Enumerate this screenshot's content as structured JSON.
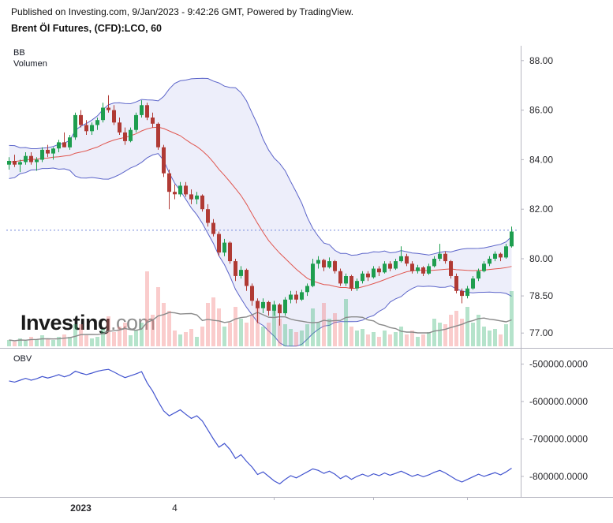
{
  "header": {
    "published_line": "Published on Investing.com, 9/Jan/2023 - 9:42:26 GMT, Powered by TradingView.",
    "instrument_title": "Brent Öl Futures, (CFD):LCO, 60"
  },
  "main_pane": {
    "indicator_labels": [
      "BB",
      "Volumen"
    ],
    "watermark": {
      "bold": "Investing",
      "light": ".com"
    }
  },
  "obv_pane": {
    "label": "OBV"
  },
  "colors": {
    "up": "#1e9e4f",
    "down": "#b03a34",
    "vol_up": "rgba(70,185,125,0.40)",
    "vol_down": "rgba(242,120,120,0.38)",
    "vol_ma": "#8a8a8a",
    "bb_fill": "rgba(104,114,216,0.12)",
    "bb_line": "#5b64c9",
    "bb_mid": "#e0564f",
    "dotted": "#7388d9",
    "obv": "#4254cf",
    "axis": "#b6b6c1",
    "text": "#27272b"
  },
  "x_axis": {
    "labels": [
      {
        "index": 13,
        "text": "2023",
        "bold": true
      },
      {
        "index": 30,
        "text": "4",
        "bold": false
      }
    ],
    "minor_tick_indices": [
      48,
      66,
      83
    ]
  },
  "chart_data": [
    {
      "type": "candlestick",
      "title": "Brent Öl Futures, (CFD):LCO, 60",
      "indicator": "BB",
      "timeframe_minutes": 60,
      "ylim": [
        76.4,
        88.6
      ],
      "dotted_line_level": 81.15,
      "y_ticks": [
        {
          "price": 88.0,
          "label": "88.00"
        },
        {
          "price": 86.0,
          "label": "86.00"
        },
        {
          "price": 84.0,
          "label": "84.00"
        },
        {
          "price": 82.0,
          "label": "82.00"
        },
        {
          "price": 80.0,
          "label": "80.00"
        },
        {
          "price": 78.5,
          "label": "78.50"
        },
        {
          "price": 77.0,
          "label": "77.00"
        }
      ],
      "bollinger": {
        "period": 20,
        "stddev": 2
      },
      "pre_closes": [
        83.2,
        83.5,
        83.1,
        83.6,
        83.4,
        83.9,
        83.6,
        84.1,
        83.8,
        84.3,
        83.9,
        84.4,
        84.0,
        84.5,
        84.1,
        83.8,
        84.2,
        83.9,
        84.1,
        83.95
      ],
      "candles": [
        [
          83.8,
          84.1,
          83.6,
          83.95
        ],
        [
          83.95,
          84.2,
          83.7,
          83.8
        ],
        [
          83.8,
          84.0,
          83.5,
          83.9
        ],
        [
          83.9,
          84.3,
          83.8,
          84.15
        ],
        [
          84.15,
          84.3,
          83.8,
          83.9
        ],
        [
          83.9,
          84.1,
          83.55,
          84.0
        ],
        [
          84.0,
          84.5,
          83.9,
          84.4
        ],
        [
          84.4,
          84.6,
          84.1,
          84.25
        ],
        [
          84.25,
          84.5,
          84.0,
          84.45
        ],
        [
          84.45,
          84.8,
          84.3,
          84.7
        ],
        [
          84.7,
          85.1,
          84.5,
          84.5
        ],
        [
          84.5,
          85.0,
          84.4,
          84.9
        ],
        [
          84.9,
          85.9,
          84.8,
          85.8
        ],
        [
          85.8,
          86.0,
          85.3,
          85.4
        ],
        [
          85.4,
          85.6,
          85.0,
          85.15
        ],
        [
          85.15,
          85.5,
          85.0,
          85.4
        ],
        [
          85.4,
          85.7,
          85.2,
          85.6
        ],
        [
          85.6,
          86.3,
          85.5,
          86.1
        ],
        [
          86.1,
          86.6,
          85.9,
          86.0
        ],
        [
          86.0,
          86.2,
          85.4,
          85.5
        ],
        [
          85.5,
          85.7,
          85.0,
          85.1
        ],
        [
          85.1,
          85.3,
          84.6,
          84.75
        ],
        [
          84.75,
          85.3,
          84.7,
          85.2
        ],
        [
          85.2,
          85.9,
          85.1,
          85.8
        ],
        [
          85.8,
          86.4,
          85.7,
          86.2
        ],
        [
          86.2,
          86.3,
          85.6,
          85.7
        ],
        [
          85.7,
          85.9,
          85.3,
          85.45
        ],
        [
          85.45,
          85.5,
          84.4,
          84.5
        ],
        [
          84.5,
          84.6,
          83.3,
          83.45
        ],
        [
          83.45,
          83.6,
          82.0,
          82.7
        ],
        [
          82.7,
          83.0,
          82.4,
          82.6
        ],
        [
          82.6,
          83.1,
          82.5,
          82.95
        ],
        [
          82.95,
          83.1,
          82.5,
          82.6
        ],
        [
          82.6,
          82.8,
          82.2,
          82.4
        ],
        [
          82.4,
          82.7,
          82.2,
          82.55
        ],
        [
          82.55,
          82.6,
          81.9,
          82.0
        ],
        [
          82.0,
          82.2,
          81.3,
          81.45
        ],
        [
          81.45,
          81.6,
          80.9,
          81.0
        ],
        [
          81.0,
          81.1,
          80.1,
          80.25
        ],
        [
          80.25,
          80.8,
          80.1,
          80.65
        ],
        [
          80.65,
          80.7,
          79.8,
          79.9
        ],
        [
          79.9,
          80.0,
          79.1,
          79.3
        ],
        [
          79.3,
          79.7,
          79.2,
          79.55
        ],
        [
          79.55,
          79.6,
          78.7,
          78.9
        ],
        [
          78.9,
          79.0,
          78.1,
          78.3
        ],
        [
          78.3,
          78.4,
          77.4,
          78.0
        ],
        [
          78.0,
          78.4,
          77.8,
          78.25
        ],
        [
          78.25,
          78.3,
          77.7,
          77.9
        ],
        [
          77.9,
          78.3,
          77.7,
          78.15
        ],
        [
          78.15,
          78.2,
          77.3,
          77.8
        ],
        [
          77.8,
          78.45,
          77.7,
          78.35
        ],
        [
          78.35,
          78.7,
          78.2,
          78.55
        ],
        [
          78.55,
          78.7,
          78.2,
          78.35
        ],
        [
          78.35,
          78.75,
          78.3,
          78.65
        ],
        [
          78.65,
          79.0,
          78.5,
          78.9
        ],
        [
          78.9,
          80.0,
          78.85,
          79.8
        ],
        [
          79.8,
          80.1,
          79.6,
          79.95
        ],
        [
          79.95,
          80.0,
          79.5,
          79.65
        ],
        [
          79.65,
          80.05,
          79.6,
          79.9
        ],
        [
          79.9,
          79.95,
          79.4,
          79.5
        ],
        [
          79.5,
          79.6,
          78.9,
          79.0
        ],
        [
          79.0,
          79.4,
          78.9,
          79.3
        ],
        [
          79.3,
          79.35,
          78.7,
          78.8
        ],
        [
          78.8,
          79.2,
          78.7,
          79.1
        ],
        [
          79.1,
          79.5,
          79.0,
          79.4
        ],
        [
          79.4,
          79.5,
          79.1,
          79.25
        ],
        [
          79.25,
          79.7,
          79.2,
          79.6
        ],
        [
          79.6,
          79.7,
          79.3,
          79.45
        ],
        [
          79.45,
          79.9,
          79.4,
          79.8
        ],
        [
          79.8,
          79.9,
          79.5,
          79.6
        ],
        [
          79.6,
          80.0,
          79.55,
          79.9
        ],
        [
          79.9,
          80.5,
          79.85,
          80.1
        ],
        [
          80.1,
          80.2,
          79.7,
          79.8
        ],
        [
          79.8,
          79.9,
          79.4,
          79.5
        ],
        [
          79.5,
          79.75,
          79.4,
          79.65
        ],
        [
          79.65,
          79.7,
          79.3,
          79.4
        ],
        [
          79.4,
          79.8,
          79.35,
          79.7
        ],
        [
          79.7,
          80.1,
          79.65,
          80.0
        ],
        [
          80.0,
          80.6,
          79.9,
          80.2
        ],
        [
          80.2,
          80.3,
          79.8,
          79.9
        ],
        [
          79.9,
          79.95,
          79.2,
          79.3
        ],
        [
          79.3,
          79.4,
          78.6,
          78.7
        ],
        [
          78.7,
          78.8,
          78.2,
          78.5
        ],
        [
          78.5,
          78.9,
          78.4,
          78.8
        ],
        [
          78.8,
          79.3,
          78.75,
          79.2
        ],
        [
          79.2,
          79.6,
          79.1,
          79.5
        ],
        [
          79.5,
          79.9,
          79.45,
          79.8
        ],
        [
          79.8,
          80.1,
          79.7,
          80.0
        ],
        [
          80.0,
          80.3,
          79.9,
          80.2
        ],
        [
          80.2,
          80.25,
          79.9,
          80.05
        ],
        [
          80.05,
          80.6,
          80.0,
          80.5
        ],
        [
          80.5,
          81.3,
          80.45,
          81.1
        ]
      ]
    },
    {
      "type": "bar",
      "name": "Volumen",
      "values": [
        8,
        6,
        10,
        7,
        12,
        9,
        14,
        10,
        8,
        12,
        15,
        12,
        28,
        28,
        14,
        10,
        12,
        22,
        38,
        18,
        25,
        30,
        14,
        20,
        30,
        95,
        40,
        75,
        55,
        45,
        20,
        15,
        18,
        22,
        12,
        25,
        55,
        62,
        48,
        25,
        30,
        50,
        35,
        30,
        40,
        55,
        25,
        30,
        45,
        35,
        28,
        22,
        18,
        20,
        28,
        48,
        30,
        55,
        35,
        42,
        30,
        60,
        25,
        20,
        22,
        15,
        18,
        12,
        20,
        15,
        18,
        25,
        15,
        20,
        12,
        15,
        18,
        35,
        30,
        28,
        40,
        45,
        35,
        50,
        30,
        40,
        25,
        20,
        22,
        15,
        28,
        70
      ]
    },
    {
      "type": "line",
      "name": "OBV",
      "ylim": [
        -855000,
        -465000
      ],
      "y_ticks": [
        {
          "value": -500000,
          "label": "-500000.0000"
        },
        {
          "value": -600000,
          "label": "-600000.0000"
        },
        {
          "value": -700000,
          "label": "-700000.0000"
        },
        {
          "value": -800000,
          "label": "-800000.0000"
        }
      ],
      "values": [
        -545000,
        -548000,
        -543000,
        -538000,
        -543000,
        -539000,
        -533000,
        -537000,
        -533000,
        -528000,
        -534000,
        -529000,
        -519000,
        -524000,
        -528000,
        -524000,
        -519000,
        -516000,
        -514000,
        -521000,
        -529000,
        -536000,
        -531000,
        -526000,
        -520000,
        -550000,
        -572000,
        -600000,
        -625000,
        -638000,
        -630000,
        -622000,
        -634000,
        -645000,
        -638000,
        -652000,
        -676000,
        -700000,
        -722000,
        -712000,
        -728000,
        -752000,
        -742000,
        -760000,
        -775000,
        -795000,
        -788000,
        -800000,
        -812000,
        -820000,
        -808000,
        -798000,
        -804000,
        -796000,
        -788000,
        -780000,
        -784000,
        -792000,
        -786000,
        -794000,
        -806000,
        -798000,
        -808000,
        -800000,
        -794000,
        -800000,
        -793000,
        -798000,
        -791000,
        -797000,
        -792000,
        -786000,
        -793000,
        -800000,
        -795000,
        -801000,
        -796000,
        -789000,
        -784000,
        -791000,
        -800000,
        -809000,
        -815000,
        -808000,
        -801000,
        -794000,
        -800000,
        -795000,
        -790000,
        -796000,
        -788000,
        -778000
      ]
    }
  ]
}
